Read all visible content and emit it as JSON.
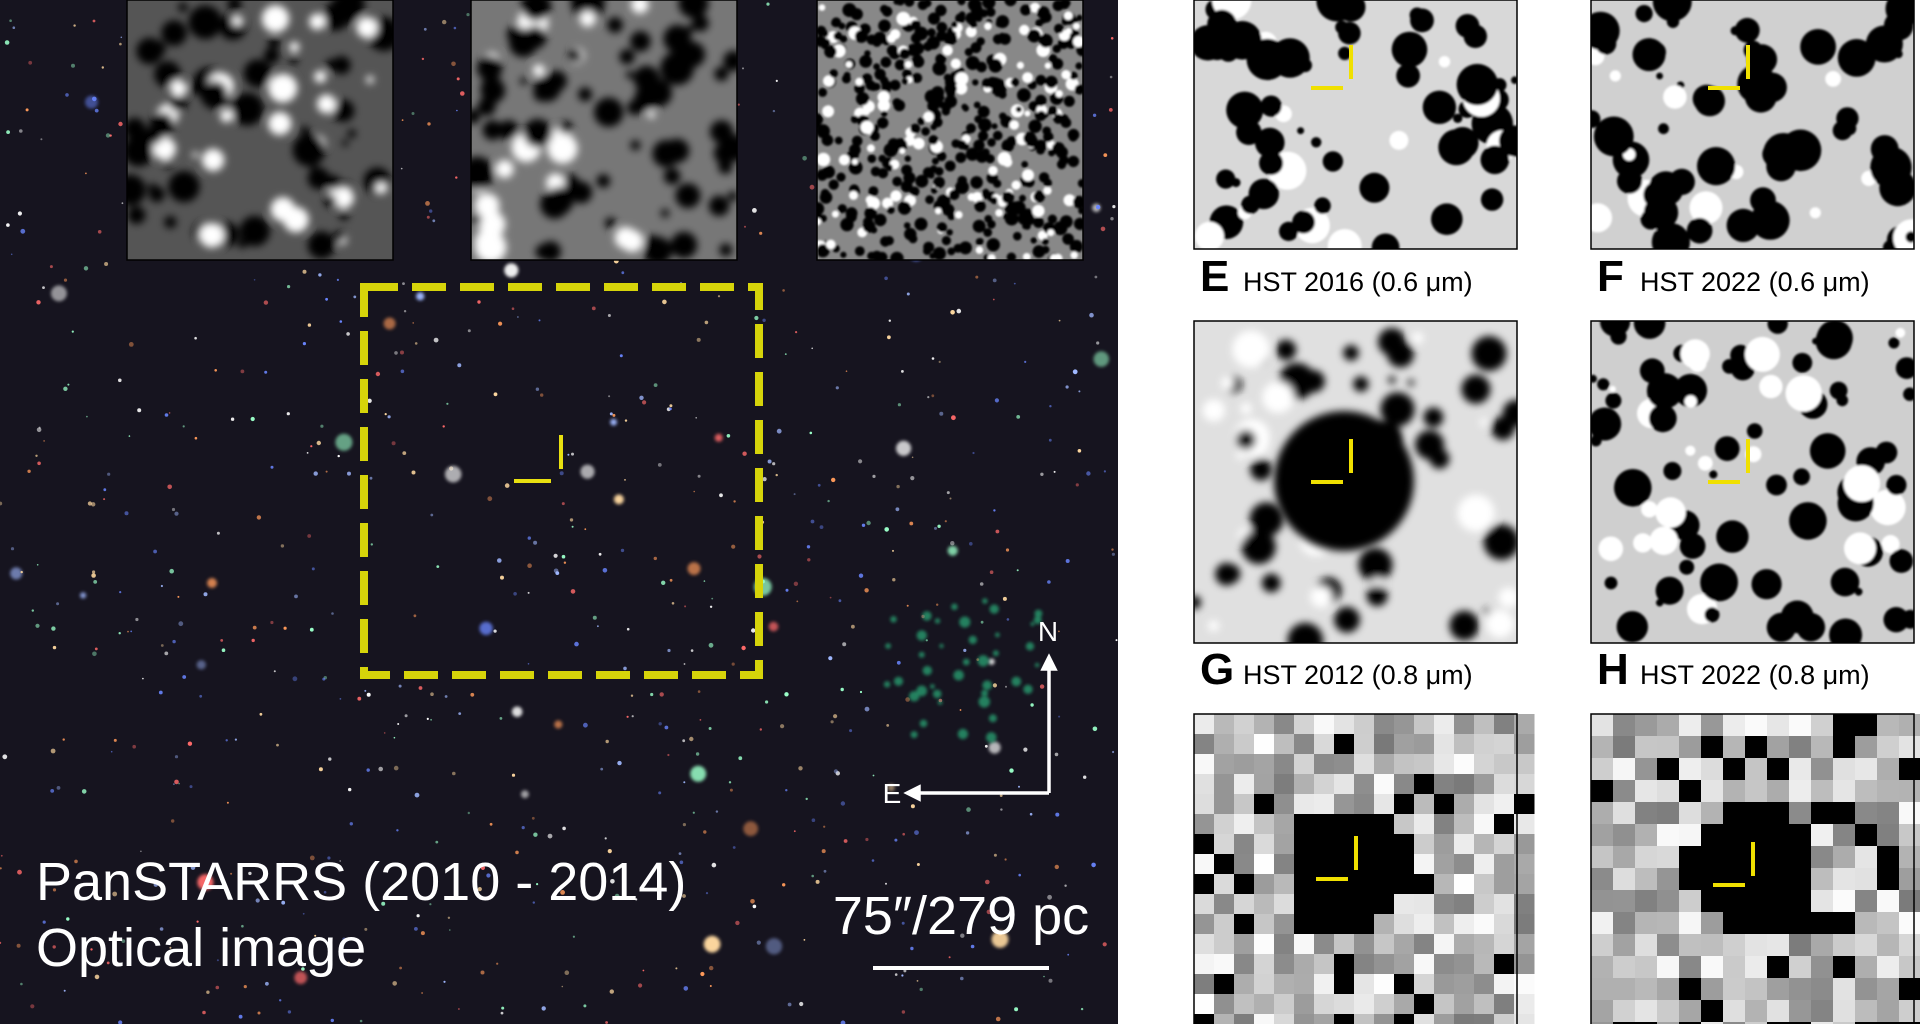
{
  "left_panel": {
    "title": "PanSTARRS (2010 - 2014)",
    "subtitle": "Optical image",
    "compass": {
      "north": "N",
      "east": "E"
    },
    "scale_bar": "75″/279 pc"
  },
  "panels": [
    {
      "letter": "E",
      "caption": "HST 2016 (0.6 μm)"
    },
    {
      "letter": "F",
      "caption": "HST 2022 (0.6 μm)"
    },
    {
      "letter": "G",
      "caption": "HST 2012 (0.8 μm)"
    },
    {
      "letter": "H",
      "caption": "HST 2022 (0.8 μm)"
    }
  ]
}
